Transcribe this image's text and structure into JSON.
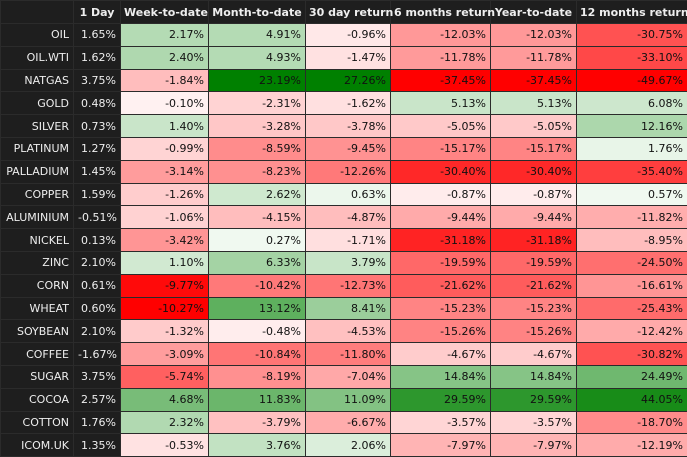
{
  "table": {
    "header": [
      "1 Day",
      "Week-to-date",
      "Month-to-date",
      "30 day return",
      "6 months return",
      "Year-to-date",
      "12 months return"
    ],
    "rows": [
      {
        "label": "OIL",
        "cells": [
          "1.65%",
          "2.17%",
          "4.91%",
          "-0.96%",
          "-12.03%",
          "-12.03%",
          "-30.75%"
        ]
      },
      {
        "label": "OIL.WTI",
        "cells": [
          "1.62%",
          "2.40%",
          "4.93%",
          "-1.47%",
          "-11.78%",
          "-11.78%",
          "-33.10%"
        ]
      },
      {
        "label": "NATGAS",
        "cells": [
          "3.75%",
          "-1.84%",
          "23.19%",
          "27.26%",
          "-37.45%",
          "-37.45%",
          "-49.67%"
        ]
      },
      {
        "label": "GOLD",
        "cells": [
          "0.48%",
          "-0.10%",
          "-2.31%",
          "-1.62%",
          "5.13%",
          "5.13%",
          "6.08%"
        ]
      },
      {
        "label": "SILVER",
        "cells": [
          "0.73%",
          "1.40%",
          "-3.28%",
          "-3.78%",
          "-5.05%",
          "-5.05%",
          "12.16%"
        ]
      },
      {
        "label": "PLATINUM",
        "cells": [
          "1.27%",
          "-0.99%",
          "-8.59%",
          "-9.45%",
          "-15.17%",
          "-15.17%",
          "1.76%"
        ]
      },
      {
        "label": "PALLADIUM",
        "cells": [
          "1.45%",
          "-3.14%",
          "-8.23%",
          "-12.26%",
          "-30.40%",
          "-30.40%",
          "-35.40%"
        ]
      },
      {
        "label": "COPPER",
        "cells": [
          "1.59%",
          "-1.26%",
          "2.62%",
          "0.63%",
          "-0.87%",
          "-0.87%",
          "0.57%"
        ]
      },
      {
        "label": "ALUMINIUM",
        "cells": [
          "-0.51%",
          "-1.06%",
          "-4.15%",
          "-4.87%",
          "-9.44%",
          "-9.44%",
          "-11.82%"
        ]
      },
      {
        "label": "NICKEL",
        "cells": [
          "0.13%",
          "-3.42%",
          "0.27%",
          "-1.71%",
          "-31.18%",
          "-31.18%",
          "-8.95%"
        ]
      },
      {
        "label": "ZINC",
        "cells": [
          "2.10%",
          "1.10%",
          "6.33%",
          "3.79%",
          "-19.59%",
          "-19.59%",
          "-24.50%"
        ]
      },
      {
        "label": "CORN",
        "cells": [
          "0.61%",
          "-9.77%",
          "-10.42%",
          "-12.73%",
          "-21.62%",
          "-21.62%",
          "-16.61%"
        ]
      },
      {
        "label": "WHEAT",
        "cells": [
          "0.60%",
          "-10.27%",
          "13.12%",
          "8.41%",
          "-15.23%",
          "-15.23%",
          "-25.43%"
        ]
      },
      {
        "label": "SOYBEAN",
        "cells": [
          "2.10%",
          "-1.32%",
          "-0.48%",
          "-4.53%",
          "-15.26%",
          "-15.26%",
          "-12.42%"
        ]
      },
      {
        "label": "COFFEE",
        "cells": [
          "-1.67%",
          "-3.09%",
          "-10.84%",
          "-11.80%",
          "-4.67%",
          "-4.67%",
          "-30.82%"
        ]
      },
      {
        "label": "SUGAR",
        "cells": [
          "3.75%",
          "-5.74%",
          "-8.19%",
          "-7.04%",
          "14.84%",
          "14.84%",
          "24.49%"
        ]
      },
      {
        "label": "COCOA",
        "cells": [
          "2.57%",
          "4.68%",
          "11.83%",
          "11.09%",
          "29.59%",
          "29.59%",
          "44.05%"
        ]
      },
      {
        "label": "COTTON",
        "cells": [
          "1.76%",
          "2.32%",
          "-3.79%",
          "-6.67%",
          "-3.57%",
          "-3.57%",
          "-18.70%"
        ]
      },
      {
        "label": "ICOM.UK",
        "cells": [
          "1.35%",
          "-0.53%",
          "3.76%",
          "2.06%",
          "-7.97%",
          "-7.97%",
          "-12.19%"
        ]
      }
    ]
  }
}
